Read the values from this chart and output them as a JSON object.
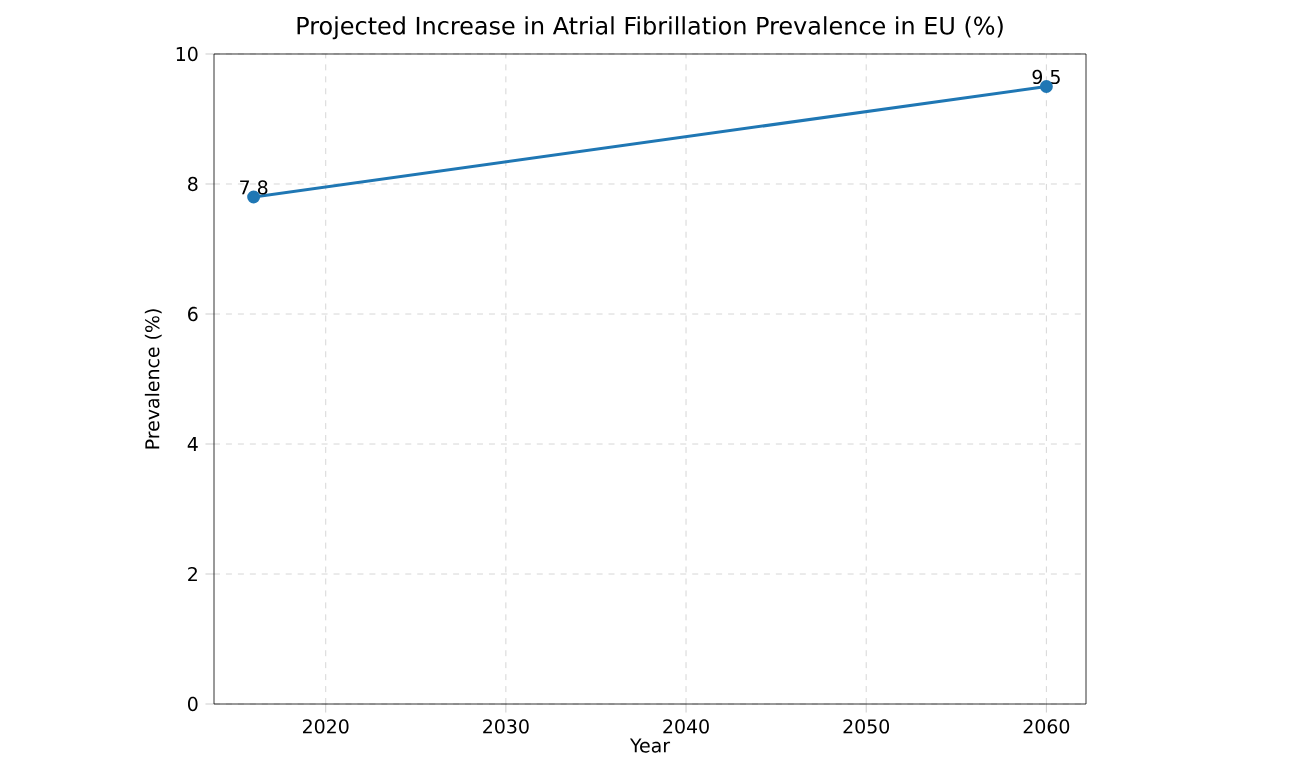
{
  "chart_data": {
    "type": "line",
    "title": "Projected Increase in Atrial Fibrillation Prevalence in EU (%)",
    "xlabel": "Year",
    "ylabel": "Prevalence (%)",
    "x": [
      2016,
      2060
    ],
    "series": [
      {
        "color": "#1f77b4",
        "values": [
          7.8,
          9.5
        ]
      }
    ],
    "xlim": [
      2013.8,
      2062.2
    ],
    "ylim": [
      0,
      10
    ],
    "xticks": [
      2020,
      2030,
      2040,
      2050,
      2060
    ],
    "yticks": [
      0,
      2,
      4,
      6,
      8,
      10
    ],
    "grid": true,
    "marker": "circle",
    "line_style": "solid",
    "data_labels": true
  }
}
